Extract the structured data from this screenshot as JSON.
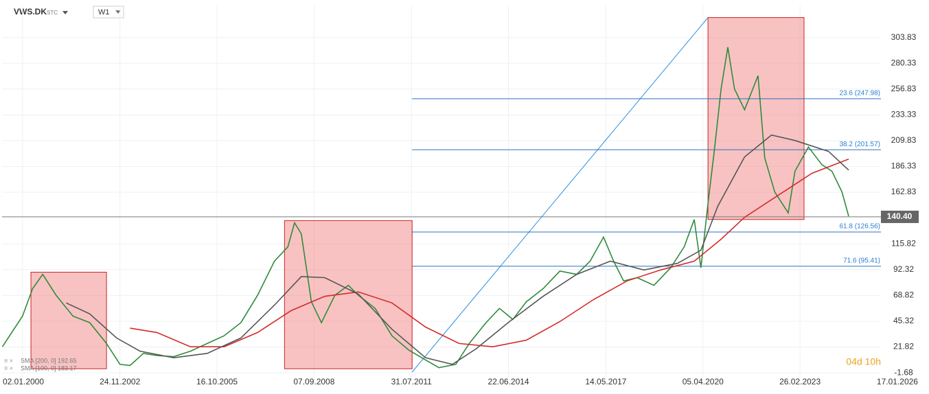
{
  "chart_data": {
    "type": "line",
    "title": "VWS.DK",
    "subtitle": "STC",
    "timeframe": "W1",
    "countdown": "04d 10h",
    "xlim": [
      1999.39,
      2025.56
    ],
    "ylim": [
      -6,
      333
    ],
    "xticks": [
      {
        "value": 2000.0,
        "label": "02.01.2000"
      },
      {
        "value": 2002.9,
        "label": "24.11.2002"
      },
      {
        "value": 2005.79,
        "label": "16.10.2005"
      },
      {
        "value": 2008.68,
        "label": "07.09.2008"
      },
      {
        "value": 2011.58,
        "label": "31.07.2011"
      },
      {
        "value": 2014.47,
        "label": "22.06.2014"
      },
      {
        "value": 2017.37,
        "label": "14.05.2017"
      },
      {
        "value": 2020.26,
        "label": "05.04.2020"
      },
      {
        "value": 2023.15,
        "label": "26.02.2023"
      },
      {
        "value": 2026.05,
        "label": "17.01.2026"
      }
    ],
    "yticks": [
      -1.68,
      21.82,
      45.32,
      68.82,
      92.32,
      115.82,
      162.83,
      186.33,
      209.83,
      233.33,
      256.83,
      280.33,
      303.83
    ],
    "grid": true,
    "series": [
      {
        "color": "#2e8b3a",
        "x": [
          1999.4,
          2000.0,
          2000.3,
          2000.6,
          2001.0,
          2001.5,
          2002.0,
          2002.5,
          2002.9,
          2003.2,
          2003.6,
          2004.0,
          2004.5,
          2005.0,
          2005.5,
          2006.0,
          2006.5,
          2007.0,
          2007.5,
          2007.9,
          2008.1,
          2008.3,
          2008.6,
          2008.9,
          2009.3,
          2009.7,
          2010.0,
          2010.5,
          2011.0,
          2011.5,
          2012.0,
          2012.4,
          2012.9,
          2013.3,
          2013.8,
          2014.2,
          2014.6,
          2015.0,
          2015.5,
          2016.0,
          2016.5,
          2016.9,
          2017.3,
          2017.6,
          2017.9,
          2018.3,
          2018.8,
          2019.3,
          2019.7,
          2020.0,
          2020.2,
          2020.4,
          2020.6,
          2020.8,
          2021.0,
          2021.2,
          2021.5,
          2021.9,
          2022.1,
          2022.4,
          2022.8,
          2023.0,
          2023.4,
          2023.8,
          2024.1,
          2024.4,
          2024.6
        ],
        "values": [
          22,
          50,
          75,
          88,
          69,
          50,
          44,
          25,
          6,
          5,
          16,
          14,
          13,
          18,
          25,
          32,
          44,
          69,
          100,
          113,
          135,
          125,
          63,
          44,
          69,
          78,
          69,
          57,
          32,
          19,
          10,
          3,
          6,
          25,
          44,
          57,
          47,
          63,
          75,
          91,
          88,
          100,
          122,
          100,
          82,
          85,
          78,
          94,
          113,
          138,
          94,
          150,
          201,
          257,
          295,
          257,
          238,
          269,
          194,
          163,
          144,
          182,
          204,
          188,
          182,
          163,
          141
        ]
      },
      {
        "name": "SMA [200, 0] 192.65",
        "color": "#d42a2a",
        "x": [
          2003.2,
          2004.0,
          2005.0,
          2006.0,
          2007.0,
          2008.0,
          2009.0,
          2010.0,
          2011.0,
          2012.0,
          2013.0,
          2014.0,
          2015.0,
          2016.0,
          2017.0,
          2018.0,
          2019.0,
          2020.0,
          2020.8,
          2021.5,
          2022.5,
          2023.5,
          2024.6
        ],
        "values": [
          39,
          35,
          22,
          22,
          35,
          55,
          68,
          72,
          62,
          40,
          25,
          22,
          28,
          45,
          65,
          82,
          92,
          100,
          120,
          140,
          160,
          180,
          193
        ]
      },
      {
        "name": "SMA [100, 0] 183.17",
        "color": "#555555",
        "x": [
          2001.3,
          2002.0,
          2002.8,
          2003.5,
          2004.5,
          2005.5,
          2006.5,
          2007.5,
          2008.3,
          2009.0,
          2010.0,
          2011.0,
          2012.0,
          2012.8,
          2013.5,
          2014.5,
          2015.5,
          2016.5,
          2017.5,
          2018.5,
          2019.5,
          2020.2,
          2020.7,
          2021.5,
          2022.3,
          2023.0,
          2024.0,
          2024.6
        ],
        "values": [
          62,
          52,
          30,
          18,
          12,
          16,
          30,
          60,
          86,
          85,
          70,
          38,
          12,
          6,
          20,
          45,
          68,
          88,
          100,
          92,
          98,
          110,
          150,
          195,
          215,
          210,
          200,
          183
        ]
      }
    ],
    "last_price": {
      "value": 140.4,
      "label": "140.40"
    },
    "fib_levels": [
      {
        "value": 247.98,
        "label": "23.6 (247.98)"
      },
      {
        "value": 201.57,
        "label": "38.2 (201.57)"
      },
      {
        "value": 126.56,
        "label": "61.8 (126.56)"
      },
      {
        "value": 95.41,
        "label": "71.6 (95.41)"
      }
    ],
    "fib_start": 2011.6,
    "trend_line": {
      "x": [
        2011.6,
        2020.41
      ],
      "y": [
        -1,
        322
      ]
    },
    "boxes": [
      {
        "x": [
          2000.25,
          2002.5
        ],
        "y": [
          2,
          90
        ]
      },
      {
        "x": [
          2007.8,
          2011.6
        ],
        "y": [
          2,
          137
        ]
      },
      {
        "x": [
          2020.41,
          2023.27
        ],
        "y": [
          138,
          322
        ]
      }
    ]
  }
}
